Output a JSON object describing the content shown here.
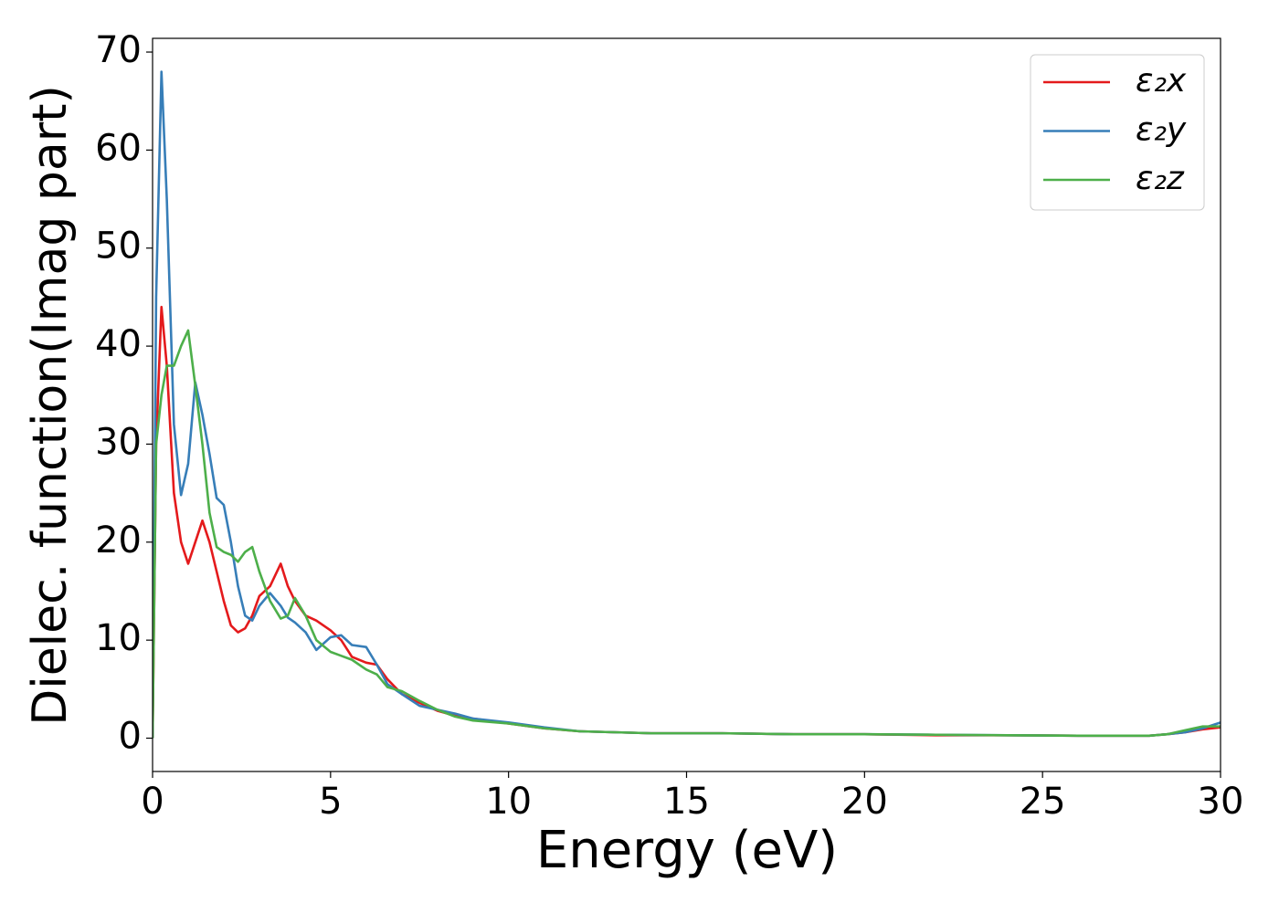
{
  "chart_data": {
    "type": "line",
    "xlabel": "Energy (eV)",
    "ylabel": "Dielec. function(Imag part)",
    "x": [
      0,
      0.1,
      0.25,
      0.4,
      0.6,
      0.8,
      1.0,
      1.2,
      1.4,
      1.6,
      1.8,
      2.0,
      2.2,
      2.4,
      2.6,
      2.8,
      3.0,
      3.3,
      3.6,
      3.8,
      4.0,
      4.3,
      4.6,
      5.0,
      5.3,
      5.6,
      6.0,
      6.3,
      6.6,
      7,
      7.5,
      8,
      8.5,
      9,
      10,
      11,
      12,
      14,
      16,
      18,
      20,
      22,
      24,
      26,
      28,
      28.5,
      29,
      29.5,
      30
    ],
    "series": [
      {
        "name": "ε₂x",
        "color": "#e41a1c",
        "values": [
          0,
          30,
          44,
          38,
          25,
          20,
          17.8,
          20,
          22.2,
          20,
          17,
          14,
          11.5,
          10.8,
          11.2,
          12.5,
          14.5,
          15.5,
          17.8,
          15.5,
          14,
          12.5,
          12,
          11,
          10,
          8.3,
          7.7,
          7.5,
          6,
          4.5,
          3.6,
          2.8,
          2.3,
          2,
          1.5,
          1.0,
          0.7,
          0.5,
          0.5,
          0.4,
          0.4,
          0.3,
          0.3,
          0.25,
          0.25,
          0.4,
          0.6,
          0.9,
          1.1
        ]
      },
      {
        "name": "ε₂y",
        "color": "#377eb8",
        "values": [
          0,
          45,
          68,
          55,
          32,
          24.8,
          28,
          36.3,
          33,
          29,
          24.5,
          23.8,
          20,
          15.5,
          12.5,
          12,
          13.5,
          14.8,
          13.5,
          12.3,
          11.8,
          10.8,
          9,
          10.3,
          10.5,
          9.5,
          9.3,
          7.5,
          5.5,
          4.5,
          3.3,
          2.9,
          2.5,
          2.0,
          1.6,
          1.1,
          0.7,
          0.5,
          0.5,
          0.4,
          0.4,
          0.35,
          0.3,
          0.25,
          0.25,
          0.4,
          0.6,
          1.0,
          1.6
        ]
      },
      {
        "name": "ε₂z",
        "color": "#4daf4a",
        "values": [
          0,
          30,
          35,
          38,
          38,
          40,
          41.6,
          36,
          30,
          23,
          19.5,
          19,
          18.7,
          18,
          19,
          19.5,
          17,
          14,
          12.2,
          12.5,
          14.3,
          12.5,
          10,
          8.8,
          8.4,
          8,
          7,
          6.5,
          5.2,
          4.8,
          3.8,
          2.9,
          2.2,
          1.8,
          1.5,
          1.0,
          0.7,
          0.5,
          0.5,
          0.4,
          0.4,
          0.35,
          0.3,
          0.25,
          0.25,
          0.4,
          0.8,
          1.2,
          1.2
        ]
      }
    ],
    "xlim": [
      0,
      30
    ],
    "xticks": [
      0,
      5,
      10,
      15,
      20,
      25,
      30
    ],
    "ylim": [
      -3.4,
      71.4
    ],
    "yticks": [
      0,
      10,
      20,
      30,
      40,
      50,
      60,
      70
    ],
    "grid": false,
    "legend": "upper right"
  }
}
